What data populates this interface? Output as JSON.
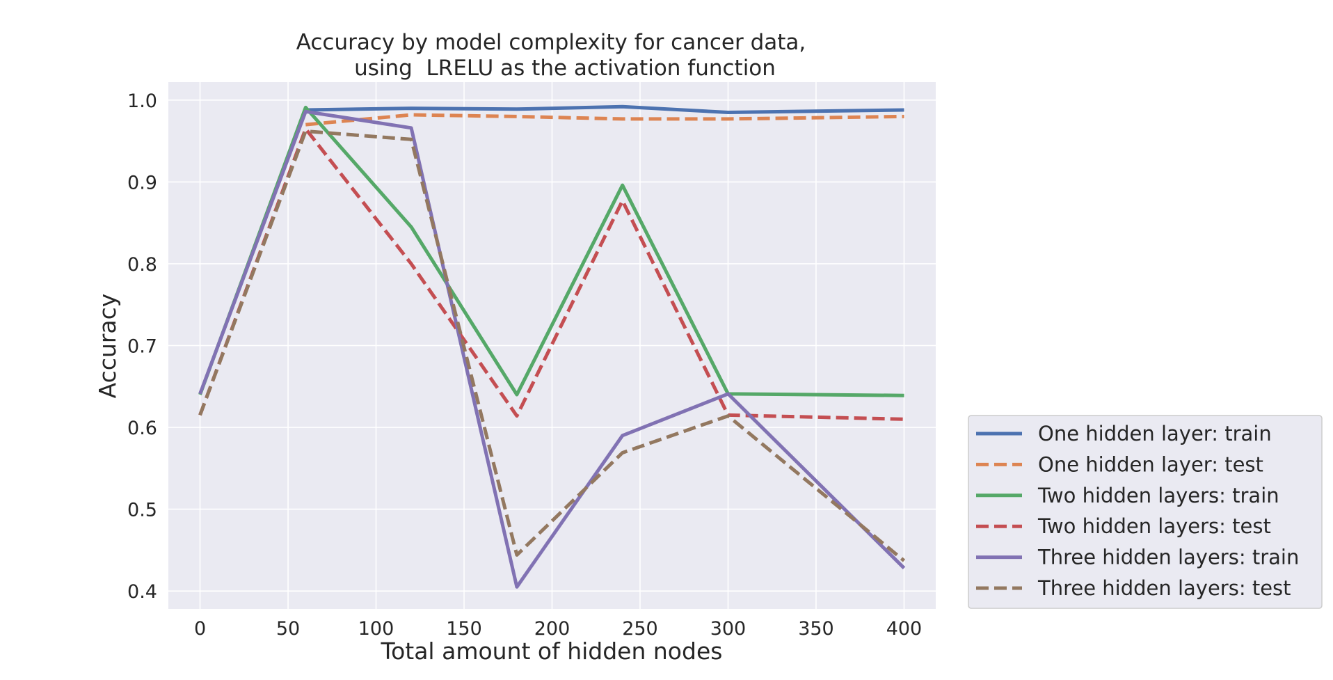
{
  "chart_data": {
    "type": "line",
    "title": "Accuracy by model complexity for cancer data,",
    "subtitle": "using  LRELU as the activation function",
    "xlabel": "Total amount of hidden nodes",
    "ylabel": "Accuracy",
    "xlim": [
      -18,
      418
    ],
    "ylim": [
      0.378,
      1.022
    ],
    "xticks": [
      0,
      50,
      100,
      150,
      200,
      250,
      300,
      350,
      400
    ],
    "yticks": [
      0.4,
      0.5,
      0.6,
      0.7,
      0.8,
      0.9,
      1.0
    ],
    "grid": true,
    "legend_position": "outside-right-bottom",
    "series": [
      {
        "name": "One hidden layer: train",
        "color": "#4c72b0",
        "dash": "solid",
        "x": [
          60,
          120,
          180,
          240,
          300,
          400
        ],
        "y": [
          0.988,
          0.99,
          0.989,
          0.992,
          0.985,
          0.988
        ]
      },
      {
        "name": "One hidden layer: test",
        "color": "#dd8452",
        "dash": "dashed",
        "x": [
          60,
          120,
          180,
          240,
          300,
          400
        ],
        "y": [
          0.97,
          0.982,
          0.98,
          0.977,
          0.977,
          0.98
        ]
      },
      {
        "name": "Two hidden layers: train",
        "color": "#55a868",
        "dash": "solid",
        "x": [
          0,
          60,
          120,
          180,
          240,
          300,
          400
        ],
        "y": [
          0.64,
          0.991,
          0.845,
          0.64,
          0.896,
          0.641,
          0.639
        ]
      },
      {
        "name": "Two hidden layers: test",
        "color": "#c44e52",
        "dash": "dashed",
        "x": [
          0,
          60,
          120,
          180,
          240,
          300,
          400
        ],
        "y": [
          0.615,
          0.965,
          0.8,
          0.614,
          0.877,
          0.615,
          0.61
        ]
      },
      {
        "name": "Three hidden layers: train",
        "color": "#8172b3",
        "dash": "solid",
        "x": [
          0,
          60,
          120,
          180,
          240,
          300,
          400
        ],
        "y": [
          0.641,
          0.986,
          0.966,
          0.405,
          0.59,
          0.641,
          0.428
        ]
      },
      {
        "name": "Three hidden layers: test",
        "color": "#937860",
        "dash": "dashed",
        "x": [
          0,
          60,
          120,
          180,
          240,
          300,
          400
        ],
        "y": [
          0.615,
          0.962,
          0.952,
          0.444,
          0.569,
          0.614,
          0.437
        ]
      }
    ]
  }
}
